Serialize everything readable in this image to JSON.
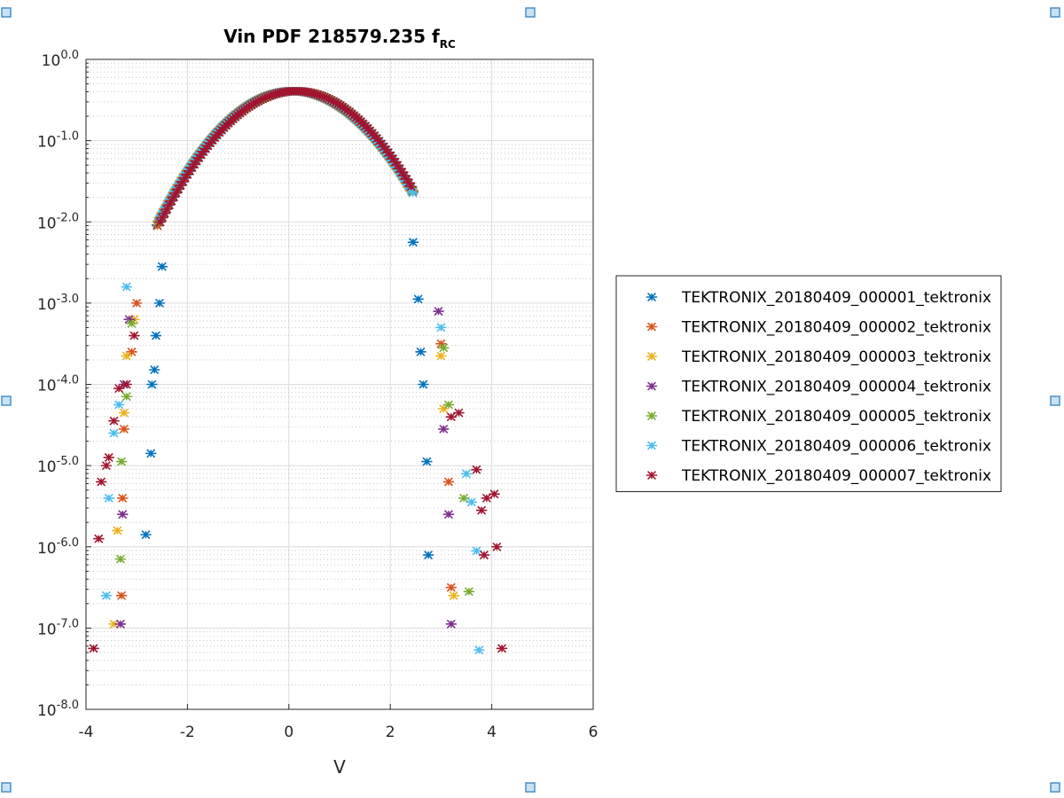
{
  "chart_data": {
    "type": "scatter",
    "title": "Vin PDF 218579.235 f",
    "title_subscript": "RC",
    "xlabel": "V",
    "ylabel": "",
    "xscale": "linear",
    "yscale": "log",
    "xlim": [
      -4,
      6
    ],
    "ylim_exponent": [
      -8,
      0
    ],
    "xticks": [
      -4,
      -2,
      0,
      2,
      4,
      6
    ],
    "xtick_labels": [
      "-4",
      "-2",
      "0",
      "2",
      "4",
      "6"
    ],
    "ytick_exponents": [
      0,
      -1,
      -2,
      -3,
      -4,
      -5,
      -6,
      -7,
      -8
    ],
    "ytick_labels": [
      {
        "base": "10",
        "exp": "0.0"
      },
      {
        "base": "10",
        "exp": "-1.0"
      },
      {
        "base": "10",
        "exp": "-2.0"
      },
      {
        "base": "10",
        "exp": "-3.0"
      },
      {
        "base": "10",
        "exp": "-4.0"
      },
      {
        "base": "10",
        "exp": "-5.0"
      },
      {
        "base": "10",
        "exp": "-6.0"
      },
      {
        "base": "10",
        "exp": "-7.0"
      },
      {
        "base": "10",
        "exp": "-8.0"
      }
    ],
    "grid": true,
    "minor_grid": true,
    "legend_position": "outside-right",
    "marker": "asterisk",
    "body_curve": {
      "mean": 0.1,
      "sigma": 0.98,
      "peak_log10": -0.39,
      "x_from": -2.6,
      "x_to": 2.45
    },
    "series": [
      {
        "name": "TEKTRONIX_20180409_000001_tektronix",
        "color": "#0072BD",
        "offset": 0.0,
        "tails": [
          [
            -2.55,
            -2.0
          ],
          [
            -2.5,
            -2.55
          ],
          [
            -2.55,
            -3.0
          ],
          [
            -2.62,
            -3.4
          ],
          [
            -2.65,
            -3.82
          ],
          [
            -2.7,
            -4.0
          ],
          [
            -2.72,
            -4.85
          ],
          [
            -2.82,
            -5.85
          ],
          [
            2.45,
            -2.25
          ],
          [
            2.55,
            -2.95
          ],
          [
            2.6,
            -3.6
          ],
          [
            2.65,
            -4.0
          ],
          [
            2.72,
            -4.95
          ],
          [
            2.75,
            -6.1
          ]
        ]
      },
      {
        "name": "TEKTRONIX_20180409_000002_tektronix",
        "color": "#D95319",
        "offset": 0.02,
        "tails": [
          [
            -3.0,
            -3.0
          ],
          [
            -3.1,
            -3.6
          ],
          [
            -3.25,
            -4.55
          ],
          [
            -3.28,
            -5.4
          ],
          [
            -3.3,
            -6.6
          ],
          [
            3.0,
            -3.5
          ],
          [
            3.15,
            -5.2
          ],
          [
            3.2,
            -6.5
          ]
        ]
      },
      {
        "name": "TEKTRONIX_20180409_000003_tektronix",
        "color": "#EDB120",
        "offset": -0.02,
        "tails": [
          [
            -3.05,
            -3.2
          ],
          [
            -3.2,
            -3.65
          ],
          [
            -3.25,
            -4.35
          ],
          [
            -3.38,
            -5.8
          ],
          [
            -3.45,
            -6.95
          ],
          [
            3.0,
            -3.65
          ],
          [
            3.05,
            -4.3
          ],
          [
            3.25,
            -6.6
          ]
        ]
      },
      {
        "name": "TEKTRONIX_20180409_000004_tektronix",
        "color": "#7E2F8E",
        "offset": 0.0,
        "tails": [
          [
            -3.15,
            -3.2
          ],
          [
            -3.25,
            -4.0
          ],
          [
            -3.28,
            -5.6
          ],
          [
            -3.32,
            -6.95
          ],
          [
            2.95,
            -3.1
          ],
          [
            3.05,
            -4.55
          ],
          [
            3.15,
            -5.6
          ],
          [
            3.2,
            -6.95
          ]
        ]
      },
      {
        "name": "TEKTRONIX_20180409_000005_tektronix",
        "color": "#77AC30",
        "offset": 0.01,
        "tails": [
          [
            -3.1,
            -3.25
          ],
          [
            -3.2,
            -4.15
          ],
          [
            -3.3,
            -4.95
          ],
          [
            -3.32,
            -6.15
          ],
          [
            3.05,
            -3.55
          ],
          [
            3.15,
            -4.25
          ],
          [
            3.45,
            -5.4
          ],
          [
            3.55,
            -6.55
          ]
        ]
      },
      {
        "name": "TEKTRONIX_20180409_000006_tektronix",
        "color": "#4DBEEE",
        "offset": -0.01,
        "tails": [
          [
            -3.2,
            -2.8
          ],
          [
            -3.35,
            -4.25
          ],
          [
            -3.45,
            -4.6
          ],
          [
            -3.55,
            -5.4
          ],
          [
            -3.6,
            -6.6
          ],
          [
            3.0,
            -3.3
          ],
          [
            3.5,
            -5.1
          ],
          [
            3.6,
            -5.45
          ],
          [
            3.7,
            -6.05
          ],
          [
            3.75,
            -7.27
          ]
        ]
      },
      {
        "name": "TEKTRONIX_20180409_000007_tektronix",
        "color": "#A2142F",
        "offset": 0.03,
        "tails": [
          [
            -3.05,
            -3.4
          ],
          [
            -3.2,
            -4.0
          ],
          [
            -3.35,
            -4.05
          ],
          [
            -3.45,
            -4.45
          ],
          [
            -3.55,
            -4.9
          ],
          [
            -3.6,
            -5.0
          ],
          [
            -3.7,
            -5.2
          ],
          [
            -3.75,
            -5.9
          ],
          [
            -3.85,
            -7.25
          ],
          [
            3.2,
            -4.4
          ],
          [
            3.35,
            -4.35
          ],
          [
            3.7,
            -5.05
          ],
          [
            3.8,
            -5.55
          ],
          [
            3.9,
            -5.4
          ],
          [
            4.05,
            -5.35
          ],
          [
            3.85,
            -6.1
          ],
          [
            4.1,
            -6.0
          ],
          [
            4.2,
            -7.25
          ]
        ]
      }
    ]
  }
}
